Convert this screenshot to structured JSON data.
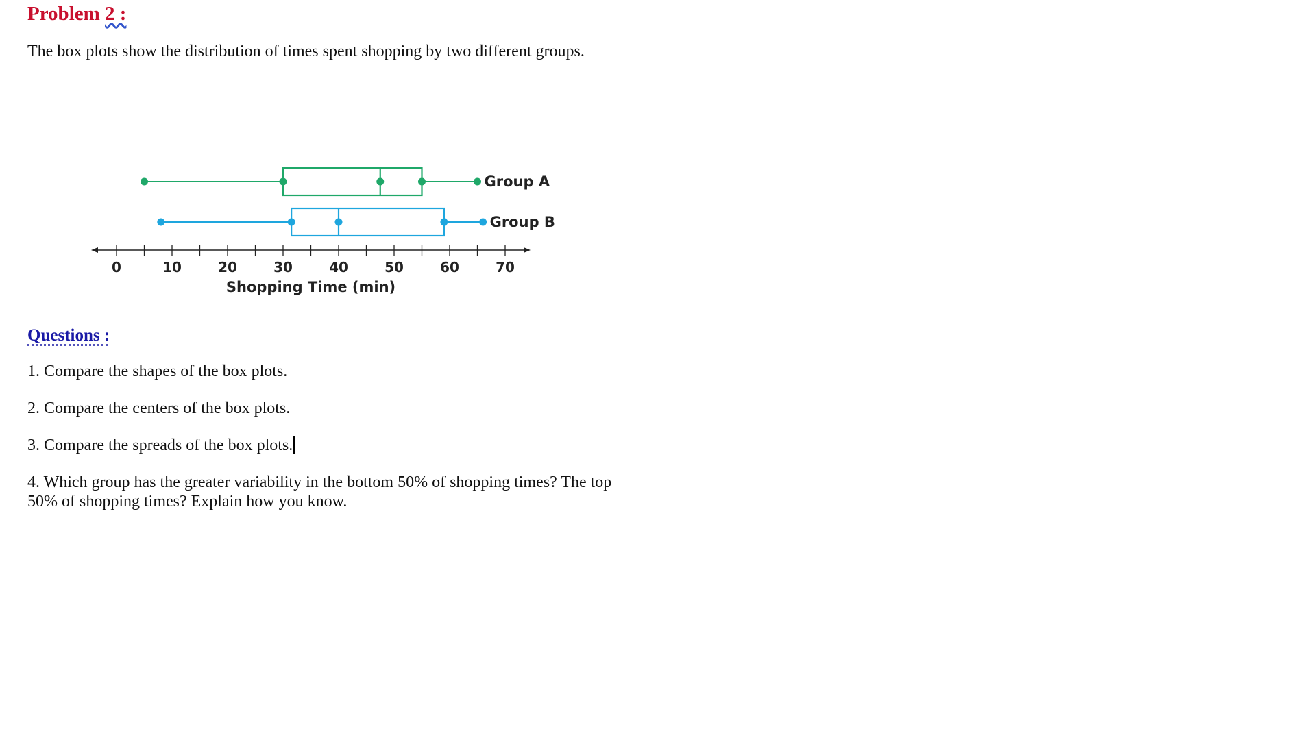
{
  "document": {
    "problem_label": "Problem",
    "problem_number": "2 :",
    "intro": "The box plots show the distribution of times spent shopping by two different groups.",
    "questions_heading": "Questions :",
    "questions": [
      "1.  Compare the shapes of the box plots.",
      "2.  Compare the centers of the box plots.",
      "3.  Compare the spreads of the box plots.",
      "4.  Which group has the greater variability in the bottom 50% of shopping times? The top 50% of shopping times? Explain how you know."
    ]
  },
  "chart_data": {
    "type": "boxplot",
    "xlabel": "Shopping Time (min)",
    "xlim": [
      0,
      70
    ],
    "ticks": [
      0,
      10,
      20,
      30,
      40,
      50,
      60,
      70
    ],
    "minor_ticks": [
      5,
      15,
      25,
      35,
      45,
      55,
      65
    ],
    "series": [
      {
        "name": "Group A",
        "color": "#1fa869",
        "min": 5,
        "q1": 30,
        "median": 47.5,
        "q3": 55,
        "max": 65
      },
      {
        "name": "Group B",
        "color": "#1ea6de",
        "min": 8,
        "q1": 31.5,
        "median": 40,
        "q3": 59,
        "max": 66
      }
    ]
  }
}
